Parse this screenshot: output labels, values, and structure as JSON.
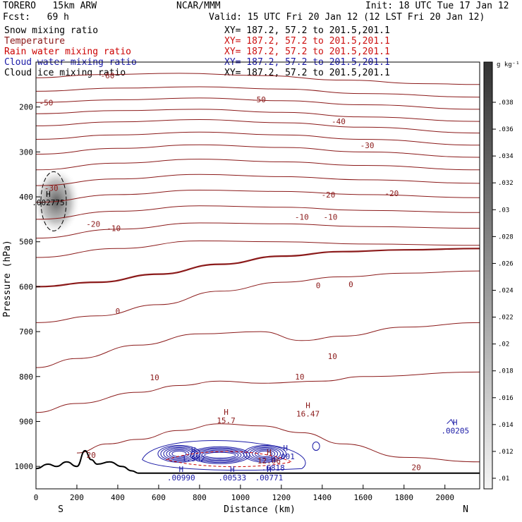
{
  "header": {
    "model": "TORERO   15km ARW",
    "center": "NCAR/MMM",
    "init": "Init: 18 UTC Tue 17 Jan 12",
    "fcst": "Fcst:   69 h",
    "valid": "Valid: 15 UTC Fri 20 Jan 12 (12 LST Fri 20 Jan 12)"
  },
  "fields": [
    {
      "name": "Snow mixing ratio",
      "xy": "XY= 187.2, 57.2 to 201.5,201.1",
      "color": "#000000"
    },
    {
      "name": "Temperature",
      "xy": "XY= 187.2, 57.2 to 201.5,201.1",
      "color": "#8b1a1a"
    },
    {
      "name": "Rain water mixing ratio",
      "xy": "XY= 187.2, 57.2 to 201.5,201.1",
      "color": "#cc0000"
    },
    {
      "name": "Cloud water mixing ratio",
      "xy": "XY= 187.2, 57.2 to 201.5,201.1",
      "color": "#1a1aa6"
    },
    {
      "name": "Cloud ice mixing ratio",
      "xy": "XY= 187.2, 57.2 to 201.5,201.1",
      "color": "#000000"
    }
  ],
  "chart_data": {
    "type": "contour cross-section",
    "xlabel": "Distance (km)",
    "ylabel": "Pressure (hPa)",
    "xlim": [
      0,
      2170
    ],
    "ylim": [
      1050,
      100
    ],
    "x_ticks": [
      0,
      200,
      400,
      600,
      800,
      1000,
      1200,
      1400,
      1600,
      1800,
      2000
    ],
    "y_ticks": [
      200,
      300,
      400,
      500,
      600,
      700,
      800,
      900,
      1000
    ],
    "end_labels": {
      "left": "S",
      "right": "N"
    },
    "colorbar": {
      "unit": "g kg⁻¹",
      "ticks": [
        ".038",
        ".036",
        ".034",
        ".032",
        ".03",
        ".028",
        ".026",
        ".024",
        ".022",
        ".02",
        ".018",
        ".016",
        ".014",
        ".012",
        ".01"
      ],
      "tick_values": [
        0.038,
        0.036,
        0.034,
        0.032,
        0.03,
        0.028,
        0.026,
        0.024,
        0.022,
        0.02,
        0.018,
        0.016,
        0.014,
        0.012,
        0.01
      ]
    },
    "temperature_contours": [
      {
        "label": "-60",
        "points": [
          [
            0,
            135
          ],
          [
            300,
            128
          ],
          [
            700,
            125
          ],
          [
            1100,
            130
          ],
          [
            1500,
            140
          ],
          [
            1900,
            148
          ],
          [
            2170,
            150
          ]
        ]
      },
      {
        "label": "",
        "points": [
          [
            0,
            165
          ],
          [
            400,
            158
          ],
          [
            800,
            155
          ],
          [
            1200,
            160
          ],
          [
            1600,
            170
          ],
          [
            2170,
            178
          ]
        ]
      },
      {
        "label": "-50",
        "points": [
          [
            0,
            190
          ],
          [
            400,
            184
          ],
          [
            800,
            180
          ],
          [
            1200,
            186
          ],
          [
            1600,
            195
          ],
          [
            2170,
            205
          ]
        ]
      },
      {
        "label": "",
        "points": [
          [
            0,
            215
          ],
          [
            400,
            208
          ],
          [
            800,
            205
          ],
          [
            1200,
            212
          ],
          [
            1600,
            222
          ],
          [
            2170,
            232
          ]
        ]
      },
      {
        "label": "-40",
        "points": [
          [
            0,
            242
          ],
          [
            400,
            233
          ],
          [
            800,
            228
          ],
          [
            1200,
            235
          ],
          [
            1600,
            245
          ],
          [
            2170,
            258
          ]
        ]
      },
      {
        "label": "",
        "points": [
          [
            0,
            272
          ],
          [
            400,
            262
          ],
          [
            800,
            256
          ],
          [
            1200,
            262
          ],
          [
            1600,
            272
          ],
          [
            2170,
            285
          ]
        ]
      },
      {
        "label": "-30",
        "points": [
          [
            0,
            305
          ],
          [
            400,
            292
          ],
          [
            800,
            284
          ],
          [
            1200,
            290
          ],
          [
            1600,
            300
          ],
          [
            2170,
            312
          ]
        ]
      },
      {
        "label": "",
        "points": [
          [
            0,
            340
          ],
          [
            400,
            325
          ],
          [
            800,
            316
          ],
          [
            1200,
            322
          ],
          [
            1600,
            330
          ],
          [
            2170,
            340
          ]
        ]
      },
      {
        "label": "-20",
        "points": [
          [
            0,
            375
          ],
          [
            400,
            360
          ],
          [
            800,
            350
          ],
          [
            1200,
            355
          ],
          [
            1600,
            362
          ],
          [
            2170,
            370
          ]
        ]
      },
      {
        "label": "",
        "points": [
          [
            0,
            412
          ],
          [
            400,
            395
          ],
          [
            800,
            385
          ],
          [
            1200,
            388
          ],
          [
            1600,
            395
          ],
          [
            2170,
            402
          ]
        ]
      },
      {
        "label": "-10",
        "points": [
          [
            0,
            450
          ],
          [
            400,
            432
          ],
          [
            800,
            420
          ],
          [
            1200,
            423
          ],
          [
            1600,
            430
          ],
          [
            2170,
            435
          ]
        ]
      },
      {
        "label": "",
        "points": [
          [
            0,
            492
          ],
          [
            400,
            472
          ],
          [
            800,
            458
          ],
          [
            1200,
            460
          ],
          [
            1600,
            466
          ],
          [
            2170,
            470
          ]
        ]
      },
      {
        "label": "",
        "points": [
          [
            0,
            535
          ],
          [
            400,
            515
          ],
          [
            800,
            498
          ],
          [
            1200,
            500
          ],
          [
            1600,
            505
          ],
          [
            2170,
            508
          ]
        ]
      },
      {
        "label": "0",
        "bold": true,
        "points": [
          [
            0,
            600
          ],
          [
            300,
            590
          ],
          [
            600,
            572
          ],
          [
            900,
            550
          ],
          [
            1200,
            532
          ],
          [
            1500,
            522
          ],
          [
            1800,
            518
          ],
          [
            2170,
            515
          ]
        ]
      },
      {
        "label": "",
        "points": [
          [
            0,
            680
          ],
          [
            300,
            665
          ],
          [
            600,
            640
          ],
          [
            900,
            610
          ],
          [
            1200,
            590
          ],
          [
            1500,
            578
          ],
          [
            1800,
            570
          ],
          [
            2170,
            565
          ]
        ]
      },
      {
        "label": "10",
        "points": [
          [
            0,
            780
          ],
          [
            200,
            760
          ],
          [
            500,
            730
          ],
          [
            800,
            705
          ],
          [
            1100,
            700
          ],
          [
            1300,
            720
          ],
          [
            1500,
            710
          ],
          [
            1800,
            690
          ],
          [
            2170,
            680
          ]
        ]
      },
      {
        "label": "",
        "points": [
          [
            0,
            880
          ],
          [
            200,
            860
          ],
          [
            500,
            835
          ],
          [
            700,
            820
          ],
          [
            900,
            810
          ],
          [
            1100,
            815
          ],
          [
            1400,
            810
          ],
          [
            1600,
            800
          ],
          [
            2170,
            790
          ]
        ]
      },
      {
        "label": "20",
        "points": [
          [
            200,
            970
          ],
          [
            350,
            950
          ],
          [
            500,
            940
          ],
          [
            700,
            920
          ],
          [
            900,
            905
          ],
          [
            1100,
            910
          ],
          [
            1300,
            925
          ],
          [
            1500,
            950
          ],
          [
            1800,
            980
          ],
          [
            2170,
            990
          ]
        ]
      }
    ],
    "cloud_water_contours": [
      {
        "label": ".001",
        "center": [
          920,
          980
        ],
        "rx": [
          1100,
          1020
        ],
        "ry": [
          960,
          1000
        ]
      }
    ],
    "cloud_ice_blob": {
      "x": 100,
      "p": 410,
      "label": ".002775"
    },
    "extrema": [
      {
        "letter": "H",
        "value": "15.7",
        "x": 930,
        "p": 885
      },
      {
        "letter": "H",
        "value": "16.47",
        "x": 1330,
        "p": 870
      },
      {
        "letter": "H",
        "value": ".002775",
        "x": 60,
        "p": 400
      },
      {
        "letter": "H",
        "value": "12.06",
        "x": 1140,
        "p": 975
      },
      {
        "letter": "H",
        "value": ".6818",
        "x": 1160,
        "p": 990
      },
      {
        "letter": "H",
        "value": ".001",
        "x": 1220,
        "p": 965
      },
      {
        "letter": "H",
        "value": "1.582",
        "x": 770,
        "p": 970
      },
      {
        "letter": "H",
        "value": ".00990",
        "x": 710,
        "p": 1012
      },
      {
        "letter": "H",
        "value": ".00533",
        "x": 960,
        "p": 1012
      },
      {
        "letter": "H",
        "value": ".00771",
        "x": 1140,
        "p": 1012
      },
      {
        "letter": "H",
        "value": ".00205",
        "x": 2050,
        "p": 908
      }
    ],
    "inline_labels": [
      {
        "text": "-60",
        "x": 350,
        "p": 130
      },
      {
        "text": "-50",
        "x": 50,
        "p": 190
      },
      {
        "text": "-50",
        "x": 1090,
        "p": 183
      },
      {
        "text": "-40",
        "x": 1480,
        "p": 232
      },
      {
        "text": "-30",
        "x": 1620,
        "p": 285
      },
      {
        "text": "-30",
        "x": 75,
        "p": 380
      },
      {
        "text": "-20",
        "x": 280,
        "p": 460
      },
      {
        "text": "-20",
        "x": 1430,
        "p": 395
      },
      {
        "text": "-20",
        "x": 1740,
        "p": 392
      },
      {
        "text": "-10",
        "x": 380,
        "p": 470
      },
      {
        "text": "-10",
        "x": 1300,
        "p": 445
      },
      {
        "text": "-10",
        "x": 1440,
        "p": 445
      },
      {
        "text": "0",
        "x": 400,
        "p": 654
      },
      {
        "text": "0",
        "x": 1380,
        "p": 597
      },
      {
        "text": "0",
        "x": 1540,
        "p": 595
      },
      {
        "text": "10",
        "x": 580,
        "p": 802
      },
      {
        "text": "10",
        "x": 1290,
        "p": 800
      },
      {
        "text": "10",
        "x": 1450,
        "p": 755
      },
      {
        "text": "20",
        "x": 270,
        "p": 975
      },
      {
        "text": "20",
        "x": 1860,
        "p": 1002
      }
    ],
    "terrain": [
      [
        0,
        1005
      ],
      [
        60,
        995
      ],
      [
        100,
        1000
      ],
      [
        150,
        990
      ],
      [
        200,
        1000
      ],
      [
        240,
        965
      ],
      [
        270,
        985
      ],
      [
        300,
        995
      ],
      [
        360,
        990
      ],
      [
        420,
        1000
      ],
      [
        470,
        1010
      ],
      [
        500,
        1015
      ],
      [
        2170,
        1015
      ]
    ]
  }
}
